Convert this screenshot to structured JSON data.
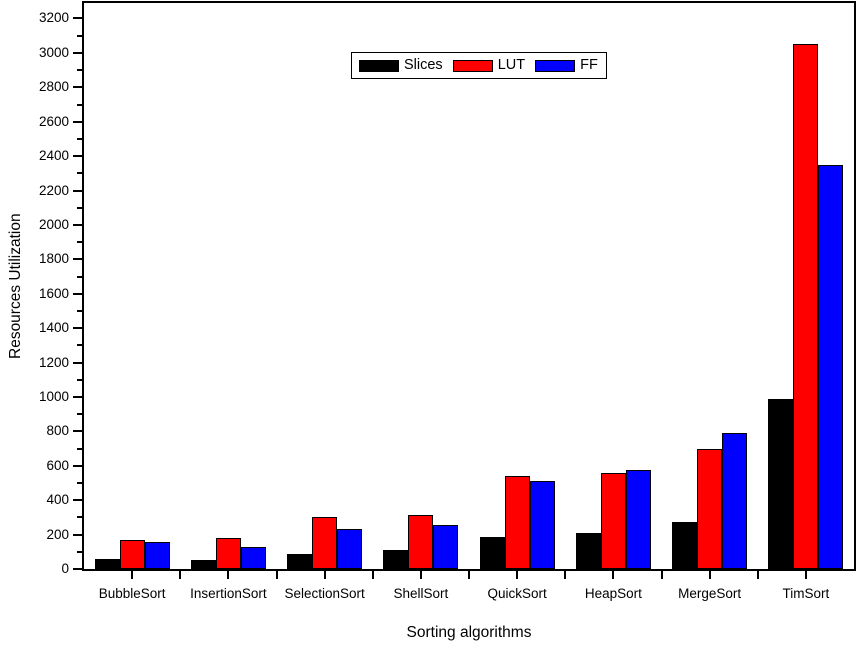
{
  "chart_data": {
    "type": "bar",
    "categories": [
      "BubbleSort",
      "InsertionSort",
      "SelectionSort",
      "ShellSort",
      "QuickSort",
      "HeapSort",
      "MergeSort",
      "TimSort"
    ],
    "series": [
      {
        "name": "Slices",
        "color": "#000000",
        "values": [
          60,
          55,
          90,
          110,
          185,
          210,
          275,
          990
        ]
      },
      {
        "name": "LUT",
        "color": "#ff0000",
        "values": [
          170,
          180,
          300,
          315,
          540,
          560,
          700,
          3050
        ]
      },
      {
        "name": "FF",
        "color": "#0000ff",
        "values": [
          155,
          130,
          235,
          255,
          510,
          575,
          790,
          2350
        ]
      }
    ],
    "xlabel": "Sorting algorithms",
    "ylabel": "Resources Utilization",
    "ylim": [
      0,
      3290
    ],
    "y_tick_max": 3200,
    "y_major_tick_interval": 200,
    "y_minor_tick_interval": 100,
    "y_tick_labels": [
      "0",
      "200",
      "400",
      "600",
      "800",
      "1000",
      "1200",
      "1400",
      "1600",
      "1800",
      "2000",
      "2200",
      "2400",
      "2600",
      "2800",
      "3000",
      "3200"
    ],
    "legend": {
      "labels": [
        "Slices",
        "LUT",
        "FF"
      ],
      "position": "top-center"
    },
    "grid": false,
    "axis_color": "#000000",
    "background_color": "#ffffff"
  }
}
